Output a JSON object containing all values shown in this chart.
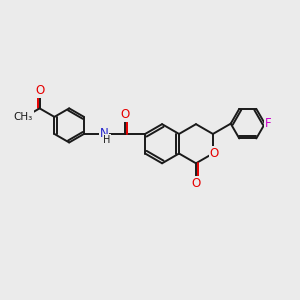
{
  "bg_color": "#ebebeb",
  "bond_color": "#1a1a1a",
  "bond_width": 1.4,
  "atom_colors": {
    "O": "#e60000",
    "N": "#2020cc",
    "F": "#cc00cc",
    "C": "#1a1a1a"
  },
  "font_size": 8.5,
  "fig_size": [
    3.0,
    3.0
  ],
  "dpi": 100,
  "core_scale": 0.78
}
